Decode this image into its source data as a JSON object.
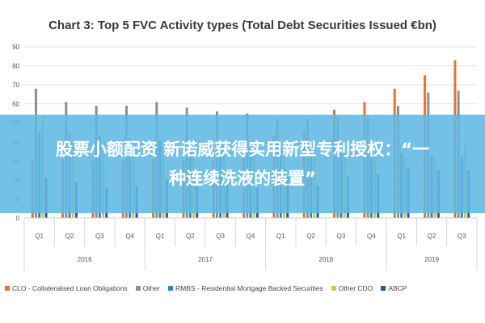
{
  "chart_data": {
    "type": "bar",
    "title": "Chart 3: Top 5 FVC Activity types (Total Debt Securities Issued €bn)",
    "categories": [
      "Q1",
      "Q2",
      "Q3",
      "Q4",
      "Q1",
      "Q2",
      "Q3",
      "Q4",
      "Q1",
      "Q2",
      "Q3",
      "Q4",
      "Q1",
      "Q2",
      "Q3"
    ],
    "groups": [
      {
        "label": "2016",
        "start": 0,
        "count": 4
      },
      {
        "label": "2017",
        "start": 4,
        "count": 4
      },
      {
        "label": "2018",
        "start": 8,
        "count": 4
      },
      {
        "label": "2019",
        "start": 12,
        "count": 3
      }
    ],
    "ylim": [
      0,
      90
    ],
    "yticks": [
      "0",
      "10",
      "20",
      "30",
      "40",
      "50",
      "60",
      "70",
      "80",
      "90"
    ],
    "grid": true,
    "legend_position": "bottom",
    "series": [
      {
        "name": "CLO - Collateralised Loan Obligations",
        "color": "#e8732e",
        "values": [
          30,
          31,
          30,
          30,
          31,
          30,
          30,
          31,
          43,
          46,
          57,
          61,
          68,
          75,
          83
        ]
      },
      {
        "name": "Other",
        "color": "#8f8f8f",
        "values": [
          68,
          61,
          59,
          59,
          61,
          58,
          56,
          55,
          52,
          52,
          53,
          53,
          59,
          66,
          67
        ]
      },
      {
        "name": "RMBS - Residential Mortgage Backed Securities",
        "color": "#2f86c6",
        "values": [
          45,
          44,
          43,
          42,
          41,
          40,
          39,
          38,
          37,
          36,
          35,
          35,
          34,
          33,
          32
        ]
      },
      {
        "name": "Other CDO",
        "color": "#e2c23a",
        "values": [
          54,
          40,
          38,
          37,
          38,
          37,
          36,
          36,
          35,
          35,
          34,
          33,
          32,
          31,
          38
        ]
      },
      {
        "name": "ABCP",
        "color": "#1e5aa8",
        "values": [
          21,
          19,
          16,
          17,
          20,
          18,
          17,
          16,
          22,
          17,
          22,
          23,
          26,
          25,
          25
        ]
      }
    ]
  },
  "overlay": {
    "line1": "股票小额配资 新诺威获得实用新型专利授权：“一",
    "line2": "种连续洗液的装置”"
  }
}
